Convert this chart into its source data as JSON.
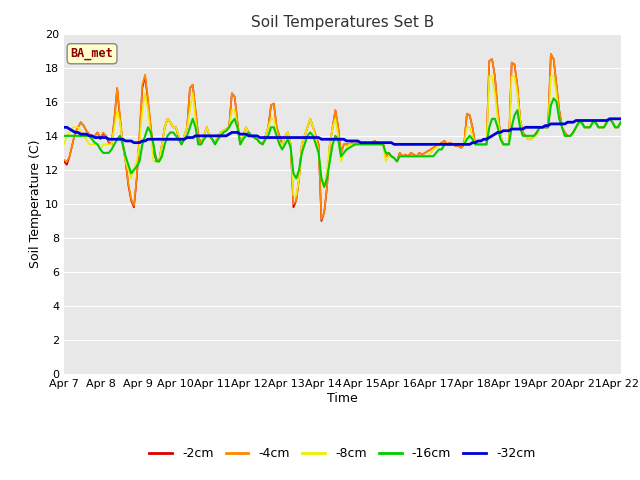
{
  "title": "Soil Temperatures Set B",
  "xlabel": "Time",
  "ylabel": "Soil Temperature (C)",
  "ylim": [
    0,
    20
  ],
  "yticks": [
    0,
    2,
    4,
    6,
    8,
    10,
    12,
    14,
    16,
    18,
    20
  ],
  "fig_bg_color": "#ffffff",
  "plot_bg_color": "#e8e8e8",
  "annotation_text": "BA_met",
  "annotation_color": "#8b0000",
  "annotation_bg": "#ffffcc",
  "series": {
    "-2cm": {
      "color": "#dd0000",
      "lw": 1.2
    },
    "-4cm": {
      "color": "#ff8800",
      "lw": 1.2
    },
    "-8cm": {
      "color": "#eeee00",
      "lw": 1.2
    },
    "-16cm": {
      "color": "#00cc00",
      "lw": 1.5
    },
    "-32cm": {
      "color": "#0000dd",
      "lw": 2.0
    }
  },
  "x_labels": [
    "Apr 7",
    "Apr 8",
    "Apr 9",
    "Apr 10",
    "Apr 11",
    "Apr 12",
    "Apr 13",
    "Apr 14",
    "Apr 15",
    "Apr 16",
    "Apr 17",
    "Apr 18",
    "Apr 19",
    "Apr 20",
    "Apr 21",
    "Apr 22"
  ],
  "data": {
    "neg2cm": [
      12.5,
      12.3,
      12.8,
      13.5,
      14.2,
      14.5,
      14.8,
      14.6,
      14.3,
      14.1,
      14.0,
      14.0,
      14.2,
      13.8,
      14.1,
      14.0,
      13.6,
      13.5,
      15.0,
      16.8,
      15.0,
      13.5,
      12.5,
      11.1,
      10.2,
      9.8,
      11.5,
      14.0,
      16.8,
      17.5,
      16.0,
      14.5,
      13.0,
      12.6,
      12.5,
      13.5,
      14.5,
      15.0,
      14.8,
      14.5,
      14.5,
      13.9,
      13.5,
      14.0,
      14.5,
      16.8,
      17.0,
      15.5,
      14.0,
      13.5,
      14.0,
      14.5,
      14.0,
      13.8,
      13.5,
      14.0,
      14.2,
      14.3,
      14.4,
      14.5,
      16.5,
      16.3,
      14.8,
      13.5,
      14.0,
      14.5,
      14.2,
      14.0,
      13.9,
      13.8,
      13.6,
      13.5,
      14.0,
      14.5,
      15.8,
      15.9,
      14.5,
      14.0,
      13.5,
      14.0,
      14.2,
      13.5,
      9.8,
      10.2,
      11.5,
      13.5,
      14.0,
      14.5,
      15.0,
      14.5,
      14.0,
      13.5,
      9.0,
      9.5,
      11.0,
      13.5,
      14.5,
      15.5,
      14.5,
      13.0,
      13.5,
      13.5,
      13.5,
      13.6,
      13.5,
      13.6,
      13.5,
      13.6,
      13.6,
      13.5,
      13.6,
      13.7,
      13.6,
      13.5,
      13.6,
      12.8,
      13.0,
      12.8,
      12.7,
      12.5,
      13.0,
      12.8,
      12.9,
      12.8,
      13.0,
      12.9,
      12.8,
      13.0,
      12.9,
      13.0,
      13.1,
      13.2,
      13.3,
      13.4,
      13.5,
      13.6,
      13.7,
      13.5,
      13.6,
      13.5,
      13.4,
      13.4,
      13.3,
      13.5,
      15.3,
      15.2,
      14.5,
      13.5,
      13.5,
      13.5,
      13.5,
      13.5,
      18.4,
      18.5,
      17.5,
      15.5,
      14.0,
      13.5,
      13.5,
      13.5,
      18.3,
      18.2,
      17.0,
      15.0,
      14.2,
      14.0,
      13.8,
      13.8,
      14.0,
      14.2,
      14.5,
      14.5,
      14.5,
      14.5,
      18.8,
      18.5,
      17.0,
      15.5,
      14.5,
      14.2,
      14.0,
      14.0,
      14.2,
      14.5,
      14.8,
      14.8,
      14.5,
      14.5,
      14.5,
      14.8,
      14.8,
      14.5,
      14.5,
      14.5,
      14.8,
      15.0,
      14.8,
      14.5,
      14.5,
      14.8
    ],
    "neg4cm": [
      12.6,
      12.5,
      12.8,
      13.5,
      14.2,
      14.5,
      14.8,
      14.6,
      14.3,
      14.1,
      14.0,
      14.0,
      14.2,
      13.9,
      14.2,
      14.0,
      13.7,
      13.5,
      15.0,
      16.8,
      15.2,
      13.6,
      12.6,
      11.2,
      10.3,
      9.9,
      11.6,
      14.2,
      17.0,
      17.6,
      16.2,
      14.6,
      13.2,
      12.7,
      12.5,
      13.5,
      14.5,
      15.0,
      14.8,
      14.5,
      14.5,
      14.0,
      13.6,
      14.0,
      14.5,
      16.8,
      17.0,
      15.5,
      14.0,
      13.5,
      14.0,
      14.5,
      14.0,
      13.8,
      13.5,
      14.0,
      14.2,
      14.3,
      14.4,
      14.5,
      16.5,
      16.3,
      14.8,
      13.5,
      14.0,
      14.5,
      14.2,
      14.0,
      13.9,
      13.8,
      13.6,
      13.5,
      14.0,
      14.5,
      15.8,
      15.9,
      14.5,
      14.0,
      13.5,
      14.0,
      14.2,
      13.5,
      10.0,
      10.2,
      11.5,
      13.5,
      14.0,
      14.5,
      15.0,
      14.5,
      14.0,
      13.5,
      9.1,
      9.5,
      11.0,
      13.5,
      14.5,
      15.5,
      14.5,
      13.0,
      13.5,
      13.5,
      13.5,
      13.6,
      13.5,
      13.6,
      13.5,
      13.6,
      13.6,
      13.5,
      13.6,
      13.7,
      13.6,
      13.5,
      13.6,
      12.8,
      13.0,
      12.8,
      12.7,
      12.5,
      13.0,
      12.8,
      12.9,
      12.8,
      13.0,
      12.9,
      12.8,
      13.0,
      12.9,
      13.0,
      13.1,
      13.2,
      13.3,
      13.4,
      13.5,
      13.6,
      13.7,
      13.5,
      13.6,
      13.5,
      13.4,
      13.4,
      13.3,
      13.5,
      15.3,
      15.2,
      14.5,
      13.5,
      13.5,
      13.5,
      13.5,
      13.5,
      18.4,
      18.5,
      17.5,
      15.5,
      14.0,
      13.5,
      13.5,
      13.5,
      18.3,
      18.2,
      17.0,
      15.0,
      14.2,
      14.0,
      13.8,
      13.8,
      14.0,
      14.2,
      14.5,
      14.5,
      14.5,
      14.5,
      18.8,
      18.5,
      17.0,
      15.5,
      14.5,
      14.2,
      14.0,
      14.0,
      14.2,
      14.5,
      14.8,
      14.8,
      14.5,
      14.5,
      14.5,
      14.8,
      14.8,
      14.5,
      14.5,
      14.5,
      14.8,
      15.0,
      14.8,
      14.5,
      14.5,
      14.8
    ],
    "neg8cm": [
      13.5,
      14.0,
      14.2,
      14.5,
      14.5,
      14.5,
      14.3,
      14.0,
      13.8,
      13.5,
      13.5,
      13.5,
      13.5,
      13.2,
      13.5,
      13.5,
      13.5,
      13.5,
      14.5,
      15.5,
      14.8,
      13.5,
      12.5,
      12.0,
      11.5,
      12.0,
      12.5,
      13.5,
      15.5,
      16.5,
      15.5,
      14.0,
      12.5,
      12.5,
      12.5,
      13.5,
      14.5,
      15.0,
      14.8,
      14.5,
      14.5,
      14.0,
      13.5,
      14.0,
      14.5,
      15.5,
      16.5,
      15.0,
      13.5,
      13.5,
      14.0,
      14.5,
      14.0,
      13.8,
      13.5,
      14.0,
      14.2,
      14.3,
      14.4,
      14.5,
      15.5,
      15.5,
      14.5,
      13.5,
      14.0,
      14.5,
      14.2,
      14.0,
      13.9,
      13.8,
      13.6,
      13.5,
      14.0,
      14.5,
      15.0,
      15.0,
      14.2,
      13.5,
      13.5,
      14.0,
      14.2,
      13.5,
      10.5,
      10.5,
      11.5,
      13.5,
      14.0,
      14.5,
      15.0,
      14.5,
      13.8,
      13.0,
      11.5,
      11.0,
      12.0,
      13.5,
      14.5,
      15.0,
      14.0,
      12.5,
      13.0,
      13.3,
      13.5,
      13.5,
      13.5,
      13.5,
      13.5,
      13.5,
      13.5,
      13.5,
      13.5,
      13.5,
      13.5,
      13.5,
      13.5,
      12.5,
      12.8,
      12.8,
      12.7,
      12.5,
      12.8,
      12.8,
      12.8,
      12.8,
      12.8,
      12.8,
      12.8,
      12.8,
      12.8,
      12.8,
      12.8,
      13.0,
      13.2,
      13.3,
      13.5,
      13.5,
      13.5,
      13.5,
      13.5,
      13.5,
      13.5,
      13.5,
      13.5,
      13.5,
      14.5,
      14.5,
      14.0,
      13.5,
      13.5,
      13.5,
      13.5,
      13.5,
      17.5,
      17.5,
      16.5,
      15.0,
      14.0,
      13.5,
      13.5,
      13.5,
      17.5,
      17.5,
      16.5,
      15.0,
      14.0,
      14.0,
      13.8,
      13.8,
      14.0,
      14.0,
      14.5,
      14.5,
      14.5,
      14.5,
      17.5,
      17.5,
      16.5,
      15.0,
      14.5,
      14.0,
      14.0,
      14.0,
      14.2,
      14.5,
      14.8,
      14.8,
      14.5,
      14.5,
      14.5,
      14.8,
      14.8,
      14.5,
      14.5,
      14.5,
      14.8,
      15.0,
      14.8,
      14.5,
      14.5,
      14.8
    ],
    "neg16cm": [
      14.0,
      14.0,
      14.0,
      14.0,
      14.0,
      14.0,
      14.0,
      14.0,
      14.0,
      14.0,
      13.8,
      13.6,
      13.5,
      13.2,
      13.0,
      13.0,
      13.0,
      13.2,
      13.5,
      13.8,
      14.0,
      13.5,
      12.8,
      12.3,
      11.8,
      12.0,
      12.2,
      12.5,
      13.5,
      14.0,
      14.5,
      14.2,
      13.5,
      12.5,
      12.5,
      12.8,
      13.5,
      14.0,
      14.2,
      14.2,
      14.0,
      13.8,
      13.5,
      13.8,
      14.0,
      14.5,
      15.0,
      14.5,
      13.5,
      13.5,
      13.8,
      14.0,
      14.0,
      13.8,
      13.5,
      13.8,
      14.0,
      14.2,
      14.3,
      14.5,
      14.8,
      15.0,
      14.5,
      13.5,
      13.8,
      14.0,
      14.2,
      14.0,
      13.9,
      13.8,
      13.6,
      13.5,
      13.8,
      14.0,
      14.5,
      14.5,
      14.0,
      13.5,
      13.2,
      13.5,
      13.8,
      13.3,
      11.8,
      11.5,
      12.0,
      13.0,
      13.5,
      14.0,
      14.2,
      14.0,
      13.5,
      13.0,
      11.5,
      11.0,
      11.5,
      12.5,
      13.5,
      14.0,
      13.8,
      12.8,
      13.0,
      13.2,
      13.3,
      13.4,
      13.5,
      13.5,
      13.5,
      13.5,
      13.5,
      13.5,
      13.5,
      13.5,
      13.5,
      13.5,
      13.5,
      13.0,
      13.0,
      12.8,
      12.7,
      12.5,
      12.8,
      12.8,
      12.8,
      12.8,
      12.8,
      12.8,
      12.8,
      12.8,
      12.8,
      12.8,
      12.8,
      12.8,
      12.8,
      13.0,
      13.2,
      13.2,
      13.5,
      13.5,
      13.5,
      13.5,
      13.5,
      13.5,
      13.5,
      13.5,
      13.8,
      14.0,
      13.8,
      13.5,
      13.5,
      13.5,
      13.5,
      13.5,
      14.5,
      15.0,
      15.0,
      14.5,
      13.8,
      13.5,
      13.5,
      13.5,
      14.5,
      15.2,
      15.5,
      14.5,
      14.0,
      14.0,
      14.0,
      14.0,
      14.0,
      14.2,
      14.5,
      14.5,
      14.5,
      14.5,
      15.8,
      16.2,
      16.0,
      15.0,
      14.5,
      14.0,
      14.0,
      14.0,
      14.2,
      14.5,
      14.8,
      14.8,
      14.5,
      14.5,
      14.5,
      14.8,
      14.8,
      14.5,
      14.5,
      14.5,
      14.8,
      15.0,
      14.8,
      14.5,
      14.5,
      14.8
    ],
    "neg32cm": [
      14.5,
      14.5,
      14.4,
      14.3,
      14.2,
      14.2,
      14.1,
      14.1,
      14.1,
      14.0,
      14.0,
      13.9,
      13.9,
      13.9,
      13.9,
      13.9,
      13.8,
      13.8,
      13.8,
      13.8,
      13.8,
      13.8,
      13.7,
      13.7,
      13.7,
      13.6,
      13.6,
      13.6,
      13.7,
      13.7,
      13.8,
      13.8,
      13.8,
      13.8,
      13.8,
      13.8,
      13.8,
      13.8,
      13.8,
      13.8,
      13.8,
      13.8,
      13.8,
      13.8,
      13.9,
      13.9,
      13.9,
      14.0,
      14.0,
      14.0,
      14.0,
      14.0,
      14.0,
      14.0,
      14.0,
      14.0,
      14.0,
      14.0,
      14.0,
      14.1,
      14.2,
      14.2,
      14.2,
      14.1,
      14.1,
      14.1,
      14.0,
      14.0,
      14.0,
      14.0,
      13.9,
      13.9,
      13.9,
      13.9,
      13.9,
      13.9,
      13.9,
      13.9,
      13.9,
      13.9,
      13.9,
      13.9,
      13.9,
      13.9,
      13.9,
      13.9,
      13.9,
      13.9,
      13.9,
      13.9,
      13.9,
      13.9,
      13.8,
      13.8,
      13.8,
      13.8,
      13.8,
      13.8,
      13.8,
      13.8,
      13.8,
      13.7,
      13.7,
      13.7,
      13.7,
      13.7,
      13.6,
      13.6,
      13.6,
      13.6,
      13.6,
      13.6,
      13.6,
      13.6,
      13.6,
      13.6,
      13.6,
      13.6,
      13.5,
      13.5,
      13.5,
      13.5,
      13.5,
      13.5,
      13.5,
      13.5,
      13.5,
      13.5,
      13.5,
      13.5,
      13.5,
      13.5,
      13.5,
      13.5,
      13.5,
      13.5,
      13.5,
      13.5,
      13.5,
      13.5,
      13.5,
      13.5,
      13.5,
      13.5,
      13.5,
      13.5,
      13.6,
      13.6,
      13.7,
      13.7,
      13.8,
      13.8,
      13.9,
      14.0,
      14.1,
      14.2,
      14.2,
      14.3,
      14.3,
      14.3,
      14.4,
      14.4,
      14.4,
      14.4,
      14.4,
      14.5,
      14.5,
      14.5,
      14.5,
      14.5,
      14.5,
      14.5,
      14.6,
      14.6,
      14.7,
      14.7,
      14.7,
      14.7,
      14.7,
      14.7,
      14.8,
      14.8,
      14.8,
      14.9,
      14.9,
      14.9,
      14.9,
      14.9,
      14.9,
      14.9,
      14.9,
      14.9,
      14.9,
      14.9,
      14.9,
      15.0,
      15.0,
      15.0,
      15.0,
      15.0
    ]
  }
}
